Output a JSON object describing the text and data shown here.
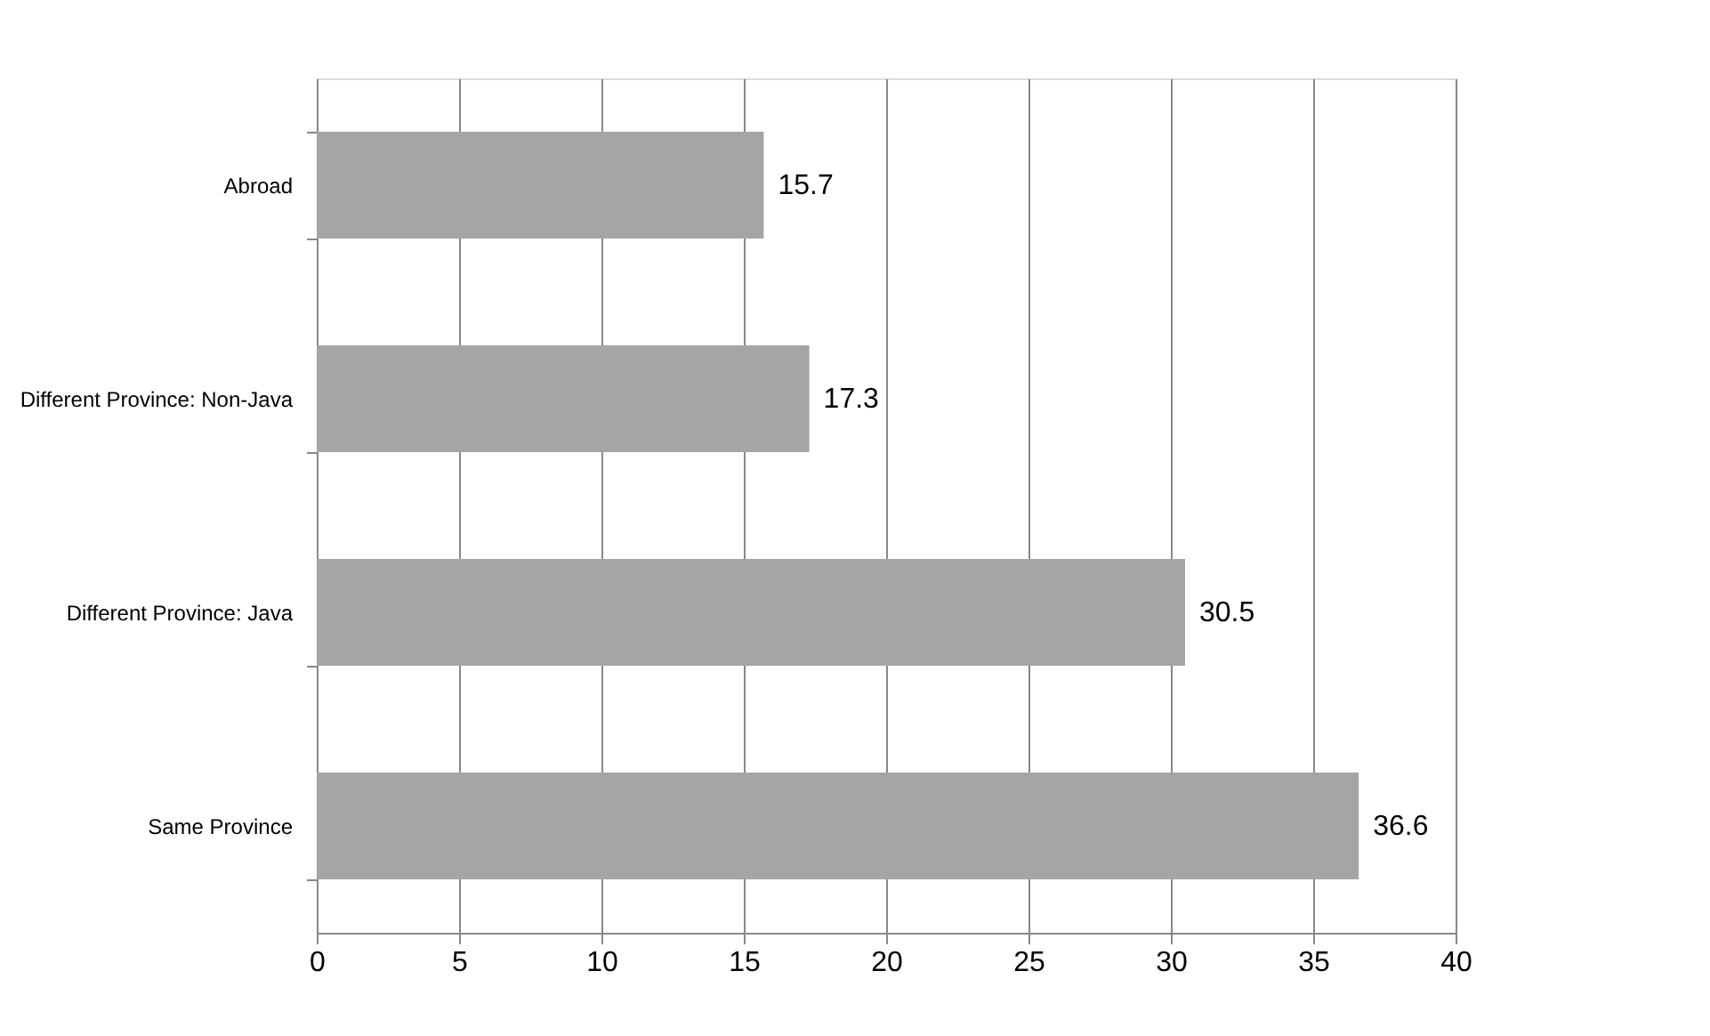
{
  "chart_data": {
    "type": "bar",
    "orientation": "horizontal",
    "categories": [
      "Abroad",
      "Different Province: Non-Java",
      "Different Province: Java",
      "Same Province"
    ],
    "values": [
      15.7,
      17.3,
      30.5,
      36.6
    ],
    "color": "#a5a5a5",
    "xlim": [
      0,
      40
    ],
    "xticks": [
      0,
      5,
      10,
      15,
      20,
      25,
      30,
      35,
      40
    ],
    "grid": "x",
    "data_labels": true
  }
}
